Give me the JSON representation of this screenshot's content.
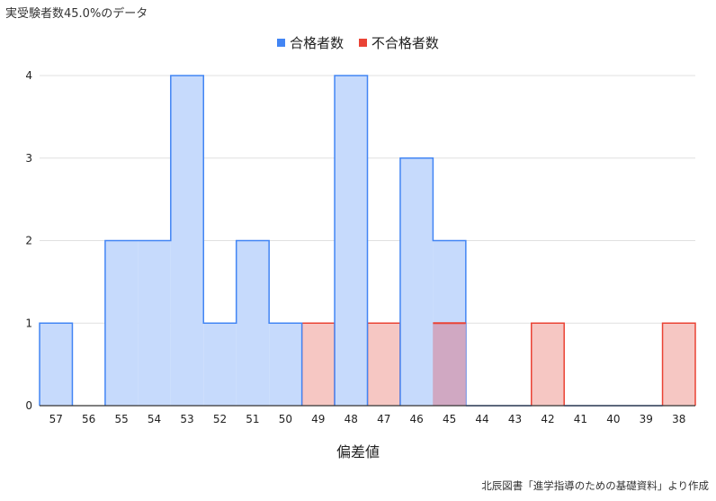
{
  "header": {
    "title": "実受験者数45.0%のデータ"
  },
  "legend": [
    {
      "label": "合格者数",
      "color": "#4285f4"
    },
    {
      "label": "不合格者数",
      "color": "#ea4335"
    }
  ],
  "source": "北辰図書「進学指導のための基礎資料」より作成",
  "colors": {
    "pass_fill": "#c6dafc",
    "pass_line": "#4285f4",
    "fail_fill": "#f6c7c3",
    "fail_line": "#ea4335",
    "overlap_fill": "#d0a8c2",
    "grid": "#e0e0e0",
    "axis": "#333333"
  },
  "chart_data": {
    "type": "area",
    "step": true,
    "title": "",
    "xlabel": "偏差値",
    "ylabel": "",
    "categories": [
      "57",
      "56",
      "55",
      "54",
      "53",
      "52",
      "51",
      "50",
      "49",
      "48",
      "47",
      "46",
      "45",
      "44",
      "43",
      "42",
      "41",
      "40",
      "39",
      "38"
    ],
    "ylim": [
      0,
      4
    ],
    "yticks": [
      0,
      1,
      2,
      3,
      4
    ],
    "grid": true,
    "legend_position": "top",
    "series": [
      {
        "name": "合格者数",
        "values": [
          1,
          0,
          2,
          2,
          4,
          1,
          2,
          1,
          0,
          4,
          0,
          3,
          2,
          0,
          0,
          0,
          0,
          0,
          0,
          0
        ]
      },
      {
        "name": "不合格者数",
        "values": [
          0,
          0,
          0,
          0,
          0,
          0,
          0,
          0,
          1,
          0,
          1,
          0,
          1,
          0,
          0,
          1,
          0,
          0,
          0,
          1
        ]
      }
    ]
  }
}
